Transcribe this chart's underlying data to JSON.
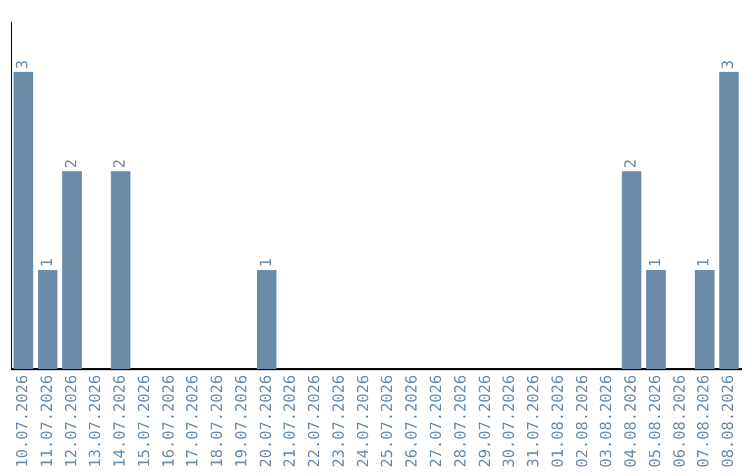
{
  "chart_data": {
    "type": "bar",
    "categories": [
      "10.07.2026",
      "11.07.2026",
      "12.07.2026",
      "13.07.2026",
      "14.07.2026",
      "15.07.2026",
      "16.07.2026",
      "17.07.2026",
      "18.07.2026",
      "19.07.2026",
      "20.07.2026",
      "21.07.2026",
      "22.07.2026",
      "23.07.2026",
      "24.07.2026",
      "25.07.2026",
      "26.07.2026",
      "27.07.2026",
      "28.07.2026",
      "29.07.2026",
      "30.07.2026",
      "31.07.2026",
      "01.08.2026",
      "02.08.2026",
      "03.08.2026",
      "04.08.2026",
      "05.08.2026",
      "06.08.2026",
      "07.08.2026",
      "08.08.2026"
    ],
    "values": [
      3,
      1,
      2,
      0,
      2,
      0,
      0,
      0,
      0,
      0,
      1,
      0,
      0,
      0,
      0,
      0,
      0,
      0,
      0,
      0,
      0,
      0,
      0,
      0,
      0,
      2,
      1,
      0,
      1,
      3
    ],
    "value_labels": [
      "3",
      "1",
      "2",
      null,
      "2",
      null,
      null,
      null,
      null,
      null,
      "1",
      null,
      null,
      null,
      null,
      null,
      null,
      null,
      null,
      null,
      null,
      null,
      null,
      null,
      null,
      "2",
      "1",
      null,
      "1",
      "3"
    ],
    "color": "#6a8caa",
    "grid": false,
    "legend": false,
    "tick_labels": "x"
  }
}
